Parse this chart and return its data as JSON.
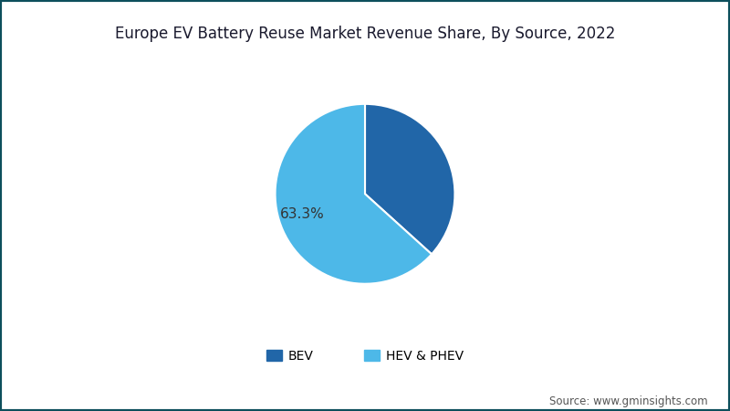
{
  "title": "Europe EV Battery Reuse Market Revenue Share, By Source, 2022",
  "slices": [
    {
      "label": "BEV",
      "value": 36.7,
      "color": "#2166a8"
    },
    {
      "label": "HEV & PHEV",
      "value": 63.3,
      "color": "#4db8e8"
    }
  ],
  "label_text": "63.3%",
  "label_color": "#333333",
  "background_color": "#ffffff",
  "border_color": "#0d4f5c",
  "source_text": "Source: www.gminsights.com",
  "title_fontsize": 12,
  "legend_fontsize": 10,
  "source_fontsize": 8.5,
  "startangle": 90
}
